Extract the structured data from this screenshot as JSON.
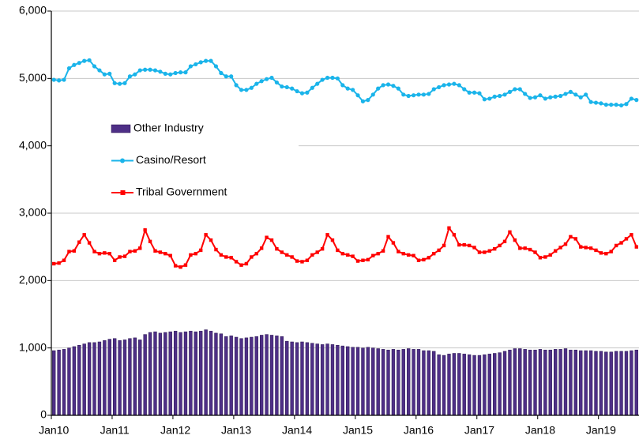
{
  "chart_data": {
    "type": "combo",
    "categories": [
      "Jan10",
      null,
      null,
      null,
      null,
      null,
      null,
      null,
      null,
      null,
      null,
      null,
      "Jan11",
      null,
      null,
      null,
      null,
      null,
      null,
      null,
      null,
      null,
      null,
      null,
      "Jan12",
      null,
      null,
      null,
      null,
      null,
      null,
      null,
      null,
      null,
      null,
      null,
      "Jan13",
      null,
      null,
      null,
      null,
      null,
      null,
      null,
      null,
      null,
      null,
      null,
      "Jan14",
      null,
      null,
      null,
      null,
      null,
      null,
      null,
      null,
      null,
      null,
      null,
      "Jan15",
      null,
      null,
      null,
      null,
      null,
      null,
      null,
      null,
      null,
      null,
      null,
      "Jan16",
      null,
      null,
      null,
      null,
      null,
      null,
      null,
      null,
      null,
      null,
      null,
      "Jan17",
      null,
      null,
      null,
      null,
      null,
      null,
      null,
      null,
      null,
      null,
      null,
      "Jan18",
      null,
      null,
      null,
      null,
      null,
      null,
      null,
      null,
      null,
      null,
      null,
      "Jan19",
      null,
      null,
      null,
      null,
      null,
      null,
      null
    ],
    "series": [
      {
        "name": "Other Industry",
        "type": "bar",
        "color": "#4e2f86",
        "values": [
          960,
          970,
          980,
          1000,
          1020,
          1040,
          1060,
          1080,
          1080,
          1090,
          1110,
          1130,
          1140,
          1110,
          1120,
          1140,
          1150,
          1120,
          1200,
          1230,
          1240,
          1220,
          1230,
          1240,
          1250,
          1230,
          1240,
          1250,
          1240,
          1250,
          1270,
          1250,
          1220,
          1210,
          1170,
          1180,
          1160,
          1140,
          1150,
          1160,
          1170,
          1190,
          1200,
          1190,
          1180,
          1170,
          1100,
          1090,
          1080,
          1090,
          1080,
          1070,
          1060,
          1050,
          1060,
          1050,
          1040,
          1030,
          1020,
          1010,
          1010,
          1000,
          1010,
          1000,
          990,
          980,
          970,
          980,
          970,
          980,
          990,
          980,
          980,
          960,
          960,
          950,
          900,
          890,
          910,
          920,
          920,
          910,
          900,
          890,
          890,
          900,
          910,
          920,
          930,
          950,
          970,
          990,
          990,
          980,
          970,
          970,
          980,
          970,
          970,
          980,
          980,
          990,
          970,
          970,
          960,
          960,
          960,
          950,
          950,
          940,
          940,
          950,
          950,
          950,
          960,
          970
        ]
      },
      {
        "name": "Casino/Resort",
        "type": "line",
        "marker": "circle",
        "color": "#1ab4ea",
        "values": [
          4980,
          4970,
          4980,
          5150,
          5200,
          5230,
          5260,
          5270,
          5180,
          5120,
          5060,
          5070,
          4930,
          4920,
          4930,
          5030,
          5060,
          5120,
          5130,
          5130,
          5120,
          5100,
          5070,
          5060,
          5080,
          5090,
          5090,
          5180,
          5210,
          5240,
          5260,
          5260,
          5180,
          5080,
          5030,
          5030,
          4900,
          4830,
          4830,
          4860,
          4920,
          4960,
          4990,
          5010,
          4940,
          4880,
          4870,
          4850,
          4810,
          4780,
          4790,
          4860,
          4920,
          4980,
          5010,
          5010,
          5000,
          4900,
          4850,
          4830,
          4750,
          4660,
          4680,
          4760,
          4850,
          4900,
          4910,
          4890,
          4850,
          4760,
          4740,
          4750,
          4760,
          4760,
          4770,
          4840,
          4870,
          4900,
          4910,
          4920,
          4900,
          4840,
          4790,
          4790,
          4780,
          4690,
          4700,
          4730,
          4740,
          4760,
          4800,
          4840,
          4840,
          4770,
          4710,
          4720,
          4750,
          4700,
          4720,
          4730,
          4740,
          4770,
          4800,
          4760,
          4720,
          4760,
          4650,
          4640,
          4630,
          4610,
          4610,
          4610,
          4600,
          4620,
          4700,
          4680
        ]
      },
      {
        "name": "Tribal Government",
        "type": "line",
        "marker": "square",
        "color": "#ff0000",
        "values": [
          2250,
          2260,
          2300,
          2430,
          2440,
          2570,
          2680,
          2560,
          2430,
          2400,
          2410,
          2400,
          2300,
          2350,
          2360,
          2430,
          2440,
          2480,
          2750,
          2580,
          2440,
          2420,
          2400,
          2370,
          2220,
          2200,
          2230,
          2380,
          2400,
          2450,
          2680,
          2600,
          2460,
          2380,
          2350,
          2340,
          2280,
          2230,
          2250,
          2350,
          2400,
          2480,
          2640,
          2600,
          2470,
          2420,
          2380,
          2350,
          2290,
          2280,
          2300,
          2380,
          2420,
          2470,
          2680,
          2600,
          2450,
          2400,
          2380,
          2360,
          2290,
          2300,
          2310,
          2370,
          2400,
          2440,
          2650,
          2560,
          2430,
          2400,
          2380,
          2370,
          2300,
          2310,
          2340,
          2400,
          2450,
          2520,
          2780,
          2680,
          2530,
          2530,
          2520,
          2490,
          2420,
          2420,
          2440,
          2470,
          2520,
          2580,
          2720,
          2600,
          2480,
          2480,
          2460,
          2420,
          2340,
          2350,
          2380,
          2440,
          2490,
          2540,
          2650,
          2620,
          2500,
          2490,
          2480,
          2450,
          2410,
          2400,
          2430,
          2520,
          2560,
          2620,
          2680,
          2500
        ]
      }
    ],
    "ylim": [
      0,
      6000
    ],
    "yticks": [
      0,
      {
        "value": 1000,
        "label": "1,000"
      },
      {
        "value": 2000,
        "label": "2,000"
      },
      {
        "value": 3000,
        "label": "3,000"
      },
      {
        "value": 4000,
        "label": "4,000"
      },
      {
        "value": 5000,
        "label": "5,000"
      },
      {
        "value": 6000,
        "label": "6,000"
      }
    ],
    "grid": true,
    "legend": "left"
  }
}
